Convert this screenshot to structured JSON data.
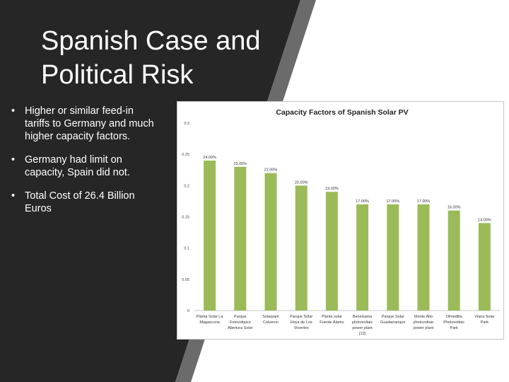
{
  "slide": {
    "title_line1": "Spanish Case and",
    "title_line2": "Political Risk",
    "bullets": [
      "Higher or similar feed-in tariffs to Germany and much higher capacity factors.",
      "Germany had limit on capacity, Spain did not.",
      "Total Cost of 26.4 Billion Euros"
    ],
    "bullet_glyph": "•"
  },
  "colors": {
    "dark_panel": "#262626",
    "stripe": "#6b6b6b",
    "bar": "#9bbb59",
    "chart_border": "#c8c8c8"
  },
  "chart_data": {
    "type": "bar",
    "title": "Capacity Factors of Spanish Solar PV",
    "xlabel": "",
    "ylabel": "",
    "ylim": [
      0,
      0.3
    ],
    "yticks": [
      "0.3",
      "0.25",
      "0.2",
      "0.15",
      "0.1",
      "0.05",
      "0"
    ],
    "grid": false,
    "categories": [
      [
        "Planta Solar La",
        "Magascona"
      ],
      [
        "Parque",
        "Fotovoltaico",
        "Abertura Solar"
      ],
      [
        "Solarpark",
        "Calveron"
      ],
      [
        "Parque Solar",
        "Hoya de Los",
        "Vicentes"
      ],
      [
        "Planta solar",
        "Fuente Álamo"
      ],
      [
        "Beneixama",
        "photovoltaic",
        "power plant",
        "[12]"
      ],
      [
        "Parque Solar",
        "Guadarranque"
      ],
      [
        "Monte Alto",
        "photovoltaic",
        "power plant"
      ],
      [
        "Olmedilla",
        "Photovoltaic",
        "Park"
      ],
      [
        "Viana Solar",
        "Park"
      ]
    ],
    "values": [
      0.24,
      0.23,
      0.22,
      0.2,
      0.19,
      0.17,
      0.17,
      0.17,
      0.16,
      0.14
    ],
    "data_labels": [
      "24.00%",
      "23.00%",
      "22.00%",
      "20.00%",
      "19.00%",
      "17.00%",
      "17.00%",
      "17.00%",
      "16.00%",
      "14.00%"
    ]
  }
}
